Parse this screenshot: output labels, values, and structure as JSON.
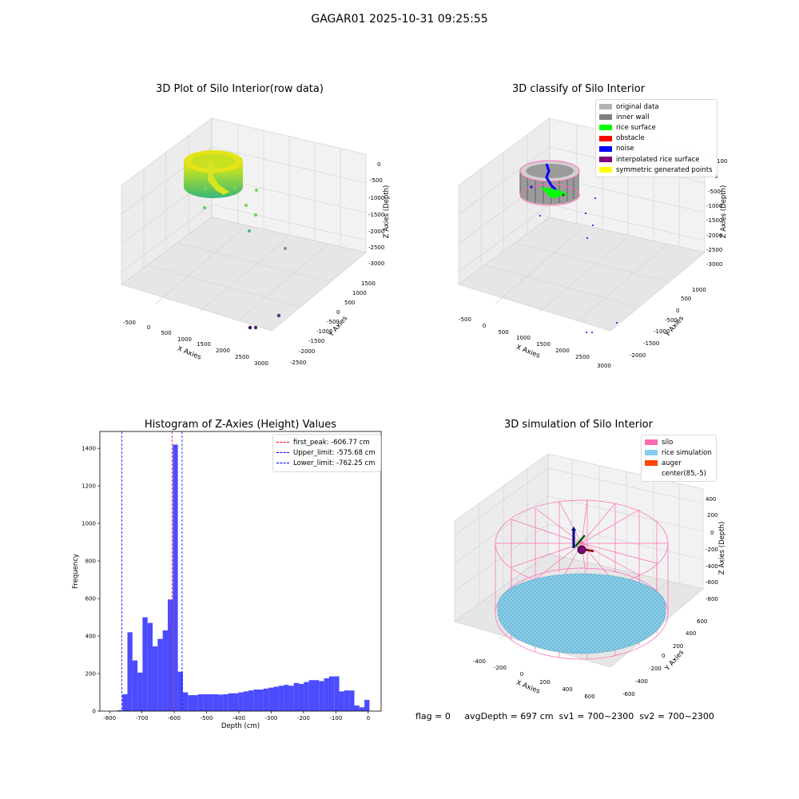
{
  "figure": {
    "title": "GAGAR01 2025-10-31 09:25:55",
    "status_line": "flag = 0     avgDepth = 697 cm  sv1 = 700~2300  sv2 = 700~2300"
  },
  "colors": {
    "original_data": "#b3b3b3",
    "inner_wall": "#808080",
    "rice_surface": "#00ff00",
    "obstacle": "#ff0000",
    "noise": "#0000ff",
    "interpolated_rice_surface": "#800080",
    "symmetric_generated_points": "#ffff00",
    "silo": "#ff69b4",
    "rice_simulation": "#87ceeb",
    "auger": "#ff4500",
    "histogram_bar": "#4b4bff"
  },
  "chart_data": [
    {
      "type": "scatter",
      "title": "3D Plot of Silo Interior(row data)",
      "xlabel": "X Axies",
      "ylabel": "Y Axies",
      "zlabel": "Z Axies (Depth)",
      "x_ticks": [
        "-500",
        "0",
        "500",
        "1000",
        "1500",
        "2000",
        "2500",
        "3000"
      ],
      "y_ticks": [
        "1500",
        "1000",
        "500",
        "0",
        "-500",
        "-1000",
        "-1500",
        "-2000",
        "-2500"
      ],
      "z_ticks": [
        "0",
        "-500",
        "-1000",
        "-1500",
        "-2000",
        "-2500",
        "-3000"
      ],
      "colormap": "viridis",
      "grid": true,
      "outlier_points": [
        {
          "x": 1700,
          "y": 300,
          "z": -900
        },
        {
          "x": 900,
          "y": 300,
          "z": -1250
        },
        {
          "x": 1550,
          "y": 400,
          "z": -1350
        },
        {
          "x": 1700,
          "y": 300,
          "z": -1550
        },
        {
          "x": 1700,
          "y": 0,
          "z": -2000
        },
        {
          "x": 2700,
          "y": -200,
          "z": -2600
        },
        {
          "x": 2800,
          "y": -1500,
          "z": -2950
        },
        {
          "x": 2500,
          "y": -1900,
          "z": -3000
        },
        {
          "x": 2650,
          "y": -1850,
          "z": -3000
        }
      ]
    },
    {
      "type": "scatter",
      "title": "3D classify of Silo Interior",
      "xlabel": "X Axies",
      "ylabel": "Y Axies",
      "zlabel": "Z Axies (Depth)",
      "x_ticks": [
        "-500",
        "0",
        "500",
        "1000",
        "1500",
        "2000",
        "2500",
        "3000"
      ],
      "y_ticks": [
        "1000",
        "500",
        "0",
        "-500",
        "-1000",
        "-1500",
        "-2000"
      ],
      "z_ticks": [
        "100",
        "0",
        "-500",
        "-1000",
        "-1500",
        "-2000",
        "-2500",
        "-3000"
      ],
      "legend": [
        "original data",
        "inner wall",
        "rice surface",
        "obstacle",
        "noise",
        "interpolated rice surface",
        "symmetric generated points"
      ],
      "legend_position": "top-right",
      "grid": true
    },
    {
      "type": "bar",
      "title": "Histogram of Z-Axies (Height) Values",
      "xlabel": "Depth (cm)",
      "ylabel": "Frequency",
      "xlim": [
        -830,
        40
      ],
      "ylim": [
        0,
        1490
      ],
      "x_ticks": [
        -800,
        -700,
        -600,
        -500,
        -400,
        -300,
        -200,
        -100,
        0
      ],
      "y_ticks": [
        0,
        200,
        400,
        600,
        800,
        1000,
        1200,
        1400
      ],
      "bin_start": -776,
      "bin_width": 15.6,
      "values": [
        5,
        90,
        420,
        270,
        205,
        500,
        470,
        345,
        385,
        430,
        595,
        1420,
        210,
        100,
        85,
        85,
        90,
        90,
        90,
        90,
        88,
        90,
        95,
        95,
        100,
        105,
        110,
        115,
        115,
        120,
        125,
        130,
        135,
        140,
        135,
        150,
        145,
        155,
        165,
        165,
        160,
        175,
        185,
        185,
        105,
        110,
        110,
        30,
        20,
        60
      ],
      "reference_lines": [
        {
          "name": "first_peak: -606.77 cm",
          "x": -606.77,
          "color": "#ff0000"
        },
        {
          "name": "Upper_limit: -575.68 cm",
          "x": -575.68,
          "color": "#0000ff"
        },
        {
          "name": "Lower_limit: -762.25 cm",
          "x": -762.25,
          "color": "#0000ff"
        }
      ],
      "legend_position": "top-right",
      "grid": false
    },
    {
      "type": "scatter",
      "title": "3D simulation of Silo Interior",
      "xlabel": "X Axies",
      "ylabel": "Y Axies",
      "zlabel": "Z Axies (Depth)",
      "x_ticks": [
        "-400",
        "-200",
        "0",
        "200",
        "400",
        "600"
      ],
      "y_ticks": [
        "600",
        "400",
        "200",
        "0",
        "-200",
        "-400",
        "-600"
      ],
      "z_ticks": [
        "400",
        "200",
        "0",
        "-200",
        "-400",
        "-600",
        "-800"
      ],
      "legend": [
        "silo",
        "rice simulation",
        "auger",
        "center(85,-5)"
      ],
      "legend_position": "top-right",
      "grid": true
    }
  ]
}
